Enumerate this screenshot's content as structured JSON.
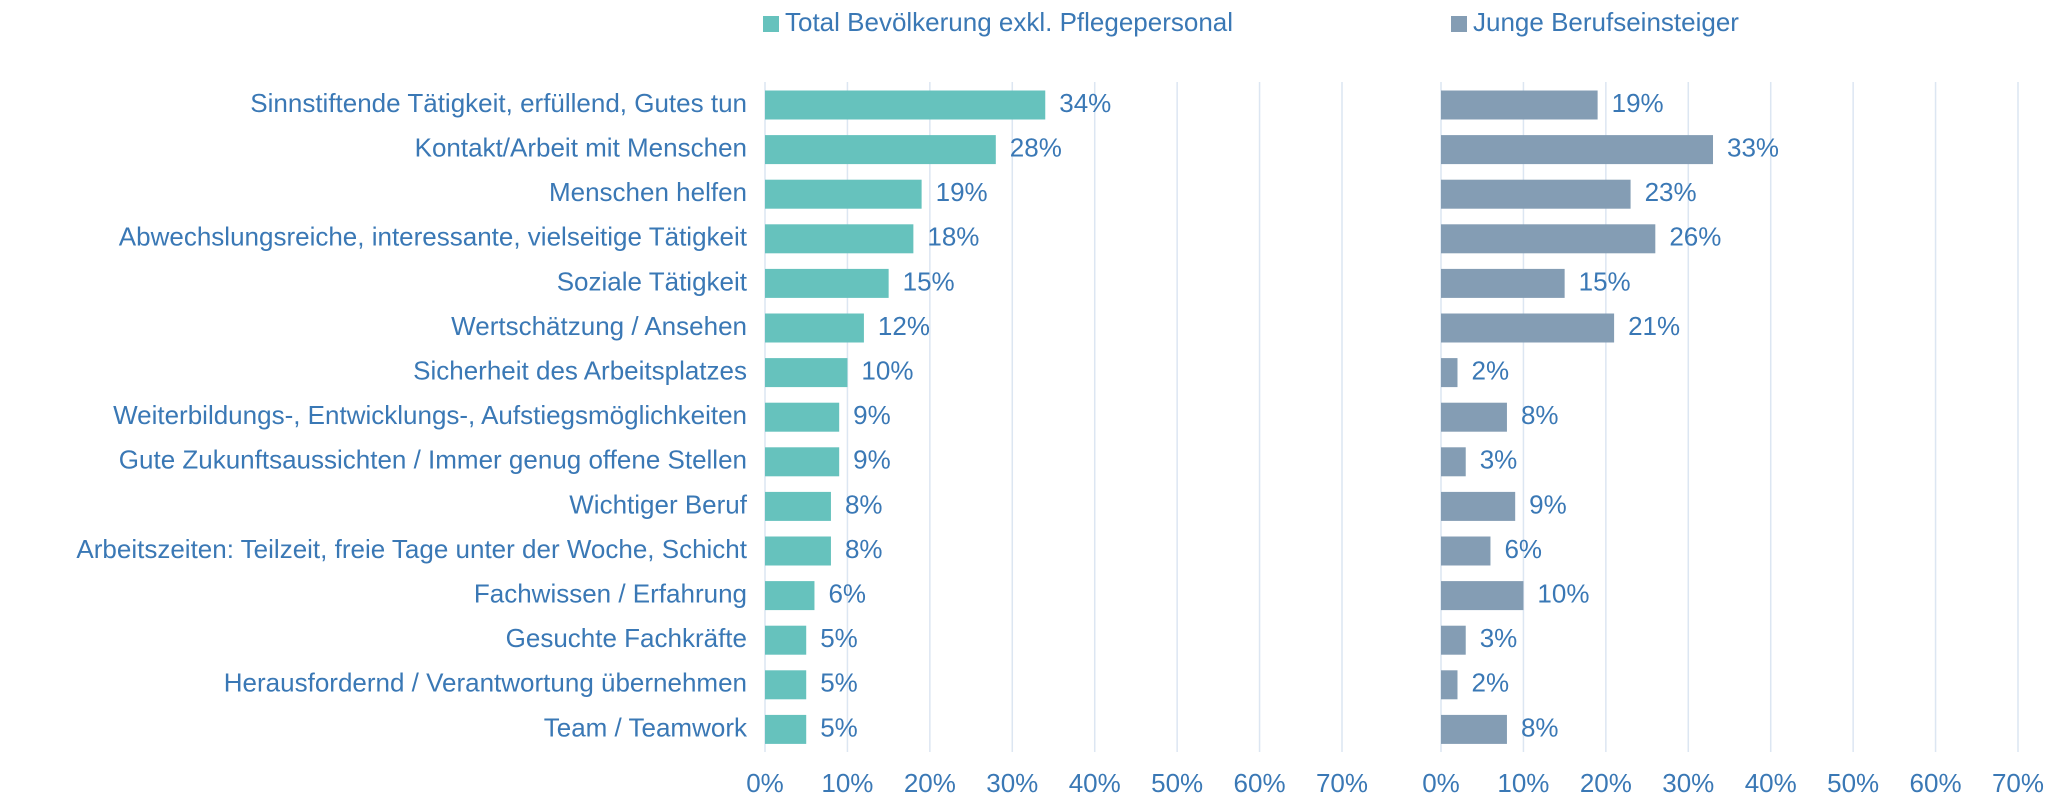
{
  "chart_data": {
    "type": "bar",
    "categories": [
      "Sinnstiftende Tätigkeit, erfüllend, Gutes tun",
      "Kontakt/Arbeit mit Menschen",
      "Menschen helfen",
      "Abwechslungsreiche, interessante, vielseitige Tätigkeit",
      "Soziale Tätigkeit",
      "Wertschätzung / Ansehen",
      "Sicherheit des Arbeitsplatzes",
      "Weiterbildungs-, Entwicklungs-, Aufstiegsmöglichkeiten",
      "Gute Zukunftsaussichten / Immer genug offene Stellen",
      "Wichtiger Beruf",
      "Arbeitszeiten: Teilzeit, freie Tage unter der Woche, Schicht",
      "Fachwissen / Erfahrung",
      "Gesuchte Fachkräfte",
      "Herausfordernd / Verantwortung übernehmen",
      "Team / Teamwork"
    ],
    "series": [
      {
        "name": "Total Bevölkerung exkl. Pflegepersonal",
        "color": "#66c2bd",
        "values": [
          34,
          28,
          19,
          18,
          15,
          12,
          10,
          9,
          9,
          8,
          8,
          6,
          5,
          5,
          5
        ],
        "value_labels": [
          "34%",
          "28%",
          "19%",
          "18%",
          "15%",
          "12%",
          "10%",
          "9%",
          "9%",
          "8%",
          "8%",
          "6%",
          "5%",
          "5%",
          "5%"
        ]
      },
      {
        "name": "Junge Berufseinsteiger",
        "color": "#849db4",
        "values": [
          19,
          33,
          23,
          26,
          15,
          21,
          2,
          8,
          3,
          9,
          6,
          10,
          3,
          2,
          8
        ],
        "value_labels": [
          "19%",
          "33%",
          "23%",
          "26%",
          "15%",
          "21%",
          "2%",
          "8%",
          "3%",
          "9%",
          "6%",
          "10%",
          "3%",
          "2%",
          "8%"
        ]
      }
    ],
    "xlim": [
      0,
      70
    ],
    "xticks": [
      {
        "value": 0,
        "label": "0%"
      },
      {
        "value": 10,
        "label": "10%"
      },
      {
        "value": 20,
        "label": "20%"
      },
      {
        "value": 30,
        "label": "30%"
      },
      {
        "value": 40,
        "label": "40%"
      },
      {
        "value": 50,
        "label": "50%"
      },
      {
        "value": 60,
        "label": "60%"
      },
      {
        "value": 70,
        "label": "70%"
      }
    ],
    "grid": true
  }
}
